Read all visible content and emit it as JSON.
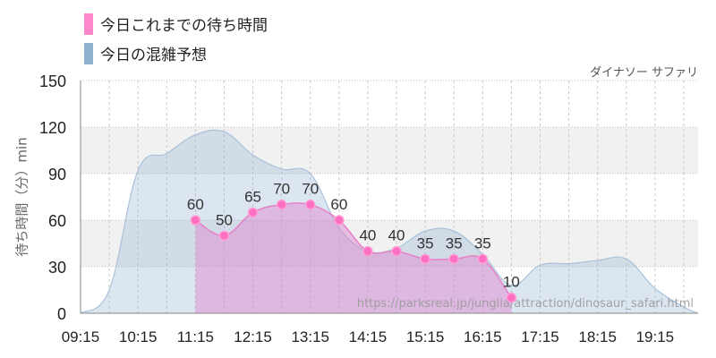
{
  "chart_data": {
    "type": "area",
    "attraction_name": "ダイナソー サファリ",
    "ylabel": "待ち時間（分）min",
    "ylim": [
      0,
      150
    ],
    "yticks": [
      0,
      30,
      60,
      90,
      120,
      150
    ],
    "xlim": [
      "09:15",
      "20:00"
    ],
    "xticks": [
      "09:15",
      "10:15",
      "11:15",
      "12:15",
      "13:15",
      "14:15",
      "15:15",
      "16:15",
      "17:15",
      "18:15",
      "19:15"
    ],
    "legend_position": "top-left",
    "grid": true,
    "watermark": "https://parksreal.jp/junglia/attraction/dinosaur_safari.html",
    "series": [
      {
        "name": "今日これまでの待ち時間",
        "color": "#ff88cc",
        "x": [
          "11:15",
          "11:45",
          "12:15",
          "12:45",
          "13:15",
          "13:45",
          "14:15",
          "14:45",
          "15:15",
          "15:45",
          "16:15",
          "16:45"
        ],
        "values": [
          60,
          50,
          65,
          70,
          70,
          60,
          40,
          40,
          35,
          35,
          35,
          10
        ]
      },
      {
        "name": "今日の混雑予想",
        "color": "#8fb1d0",
        "x": [
          "09:15",
          "09:45",
          "10:15",
          "10:45",
          "11:15",
          "11:45",
          "12:15",
          "12:45",
          "13:15",
          "13:45",
          "14:15",
          "14:45",
          "15:15",
          "15:45",
          "16:15",
          "16:45",
          "17:15",
          "17:45",
          "18:15",
          "18:45",
          "19:15",
          "19:45",
          "20:00"
        ],
        "values": [
          0,
          15,
          92,
          103,
          115,
          117,
          102,
          93,
          90,
          55,
          40,
          42,
          53,
          53,
          38,
          18,
          31,
          32,
          34,
          35,
          16,
          4,
          0
        ]
      }
    ]
  }
}
